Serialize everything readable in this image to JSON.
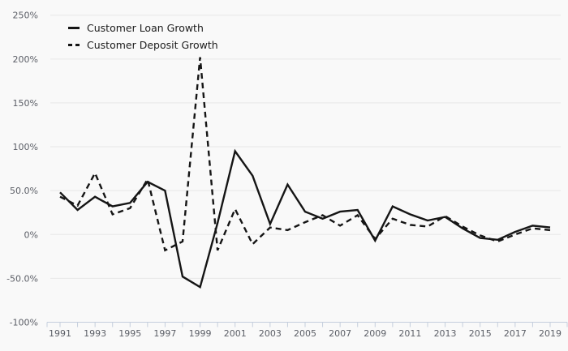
{
  "chart_data": {
    "type": "line",
    "title": "",
    "xlabel": "",
    "ylabel": "",
    "grid": true,
    "legend_position": "top-left",
    "x": [
      1991,
      1992,
      1993,
      1994,
      1995,
      1996,
      1997,
      1998,
      1999,
      2000,
      2001,
      2002,
      2003,
      2004,
      2005,
      2006,
      2007,
      2008,
      2009,
      2010,
      2011,
      2012,
      2013,
      2014,
      2015,
      2016,
      2017,
      2018,
      2019
    ],
    "series": [
      {
        "name": "Customer Loan Growth",
        "style": "solid",
        "values": [
          48,
          28,
          43,
          32,
          36,
          60,
          50,
          -48,
          -60,
          13,
          95,
          67,
          12,
          57,
          26,
          18,
          26,
          28,
          -7,
          32,
          23,
          16,
          20,
          7,
          -4,
          -6,
          3,
          10,
          8
        ]
      },
      {
        "name": "Customer Deposit Growth",
        "style": "dashed",
        "values": [
          43,
          33,
          70,
          23,
          30,
          63,
          -18,
          -8,
          202,
          -18,
          29,
          -11,
          8,
          5,
          14,
          22,
          10,
          22,
          -5,
          18,
          11,
          9,
          21,
          9,
          -1,
          -8,
          0,
          7,
          5
        ]
      }
    ],
    "ylim": [
      -100,
      250
    ],
    "y_tick_values": [
      250,
      200,
      150,
      100,
      50,
      0,
      -50,
      -100
    ],
    "y_tick_labels": [
      "250%",
      "200%",
      "150%",
      "100%",
      "50.0%",
      "0%",
      "-50.0%",
      "-100%"
    ],
    "x_tick_years_labeled": [
      1991,
      1993,
      1995,
      1997,
      1999,
      2001,
      2003,
      2005,
      2007,
      2009,
      2011,
      2013,
      2015,
      2017,
      2019
    ],
    "unit": "%",
    "colors": {
      "line": "#151515",
      "background": "#f9f9f9",
      "gridline": "#e7e7e7",
      "axis": "#c5cedd",
      "tick_label": "#5b5e66",
      "legend_text": "#1c1c1c"
    }
  }
}
